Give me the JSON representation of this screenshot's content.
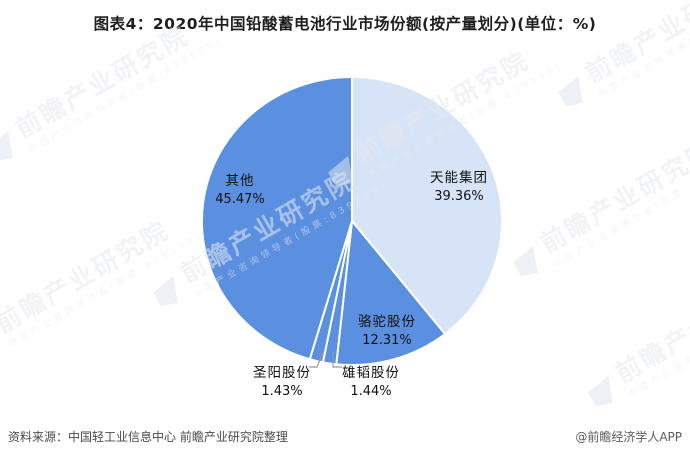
{
  "title": "图表4：2020年中国铅酸蓄电池行业市场份额(按产量划分)(单位：%)",
  "watermark": {
    "brand": "前瞻产业研究院",
    "tagline": "中国产业咨询领导者(股票:839599)"
  },
  "footer": {
    "source": "资料来源：中国轻工业信息中心 前瞻产业研究院整理",
    "credit": "@前瞻经济学人APP"
  },
  "chart_data": {
    "type": "pie",
    "title": "2020年中国铅酸蓄电池行业市场份额(按产量划分)",
    "unit": "%",
    "order": "clockwise-from-top",
    "legend": "none",
    "grid": false,
    "slices": [
      {
        "label": "天能集团",
        "value": 39.36,
        "display": "39.36%",
        "color": "#d7e3f6"
      },
      {
        "label": "骆驼股份",
        "value": 12.31,
        "display": "12.31%",
        "color": "#5b90e0"
      },
      {
        "label": "雄韬股份",
        "value": 1.44,
        "display": "1.44%",
        "color": "#5b90e0"
      },
      {
        "label": "圣阳股份",
        "value": 1.43,
        "display": "1.43%",
        "color": "#5b90e0"
      },
      {
        "label": "其他",
        "value": 45.47,
        "display": "45.47%",
        "color": "#5b90e0"
      }
    ],
    "colors": {
      "highlight_slice": "#d7e3f6",
      "base_slice": "#5b90e0",
      "slice_border": "#ffffff",
      "label_text": "#111111",
      "leader_line": "#999999"
    }
  }
}
